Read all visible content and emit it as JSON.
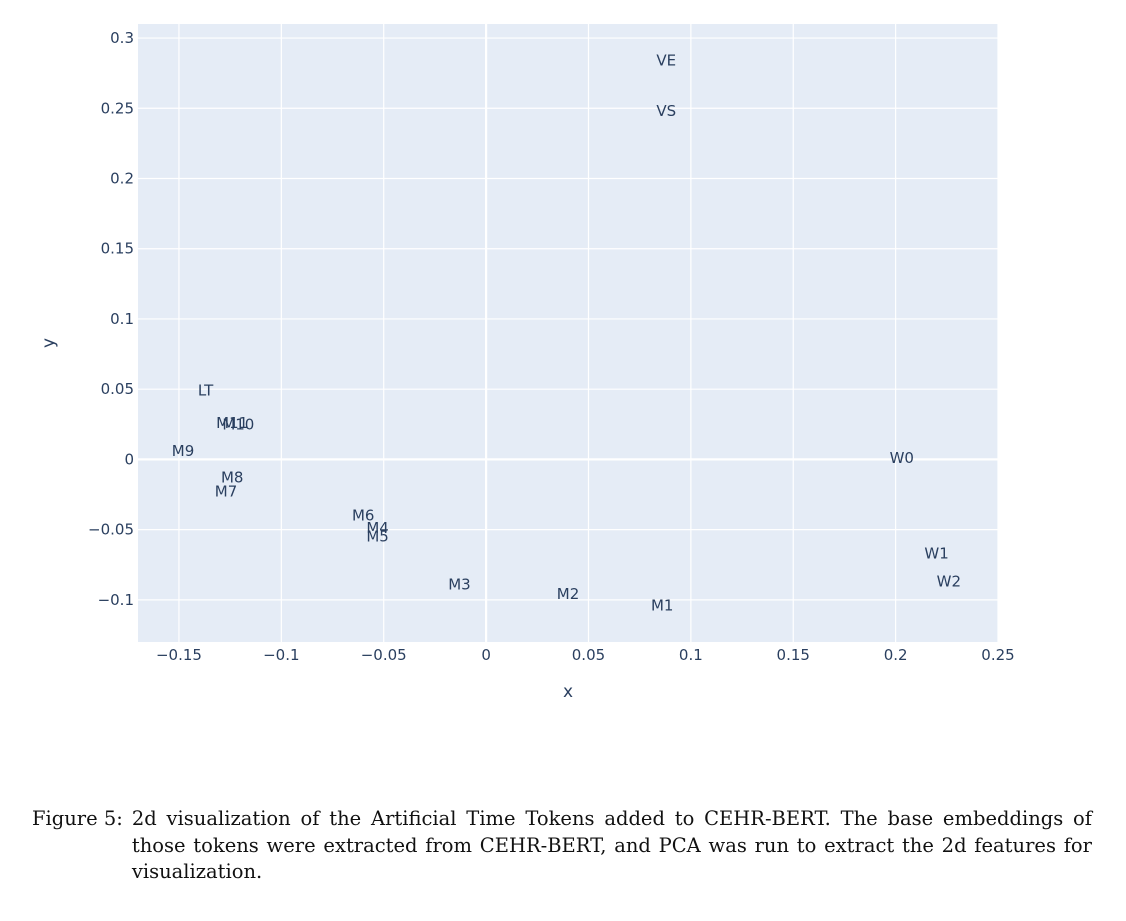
{
  "chart_data": {
    "type": "scatter",
    "mode": "text",
    "title": "",
    "xlabel": "x",
    "ylabel": "y",
    "xlim": [
      -0.17,
      0.25
    ],
    "ylim": [
      -0.13,
      0.31
    ],
    "xticks": [
      -0.15,
      -0.1,
      -0.05,
      0,
      0.05,
      0.1,
      0.15,
      0.2,
      0.25
    ],
    "xtick_labels": [
      "−0.15",
      "−0.1",
      "−0.05",
      "0",
      "0.05",
      "0.1",
      "0.15",
      "0.2",
      "0.25"
    ],
    "yticks": [
      -0.1,
      -0.05,
      0,
      0.05,
      0.1,
      0.15,
      0.2,
      0.25,
      0.3
    ],
    "ytick_labels": [
      "−0.1",
      "−0.05",
      "0",
      "0.05",
      "0.1",
      "0.15",
      "0.2",
      "0.25",
      "0.3"
    ],
    "grid": true,
    "legend": "none",
    "colors": {
      "plot_background": "#e5ecf6",
      "grid": "#ffffff",
      "text": "#2a3f5f"
    },
    "points": [
      {
        "label": "VE",
        "x": 0.088,
        "y": 0.284
      },
      {
        "label": "VS",
        "x": 0.088,
        "y": 0.248
      },
      {
        "label": "LT",
        "x": -0.137,
        "y": 0.049
      },
      {
        "label": "M11",
        "x": -0.124,
        "y": 0.026
      },
      {
        "label": "M10",
        "x": -0.121,
        "y": 0.025
      },
      {
        "label": "M9",
        "x": -0.148,
        "y": 0.006
      },
      {
        "label": "M8",
        "x": -0.124,
        "y": -0.013
      },
      {
        "label": "M7",
        "x": -0.127,
        "y": -0.023
      },
      {
        "label": "M6",
        "x": -0.06,
        "y": -0.04
      },
      {
        "label": "M4",
        "x": -0.053,
        "y": -0.049
      },
      {
        "label": "M5",
        "x": -0.053,
        "y": -0.055
      },
      {
        "label": "M3",
        "x": -0.013,
        "y": -0.089
      },
      {
        "label": "M2",
        "x": 0.04,
        "y": -0.096
      },
      {
        "label": "M1",
        "x": 0.086,
        "y": -0.104
      },
      {
        "label": "W0",
        "x": 0.203,
        "y": 0.001
      },
      {
        "label": "W1",
        "x": 0.22,
        "y": -0.067
      },
      {
        "label": "W2",
        "x": 0.226,
        "y": -0.087
      }
    ]
  },
  "caption": {
    "label": "Figure 5:",
    "text": "2d visualization of the Artificial Time Tokens added to CEHR-BERT. The base embeddings of those tokens were extracted from CEHR-BERT, and PCA was run to extract the 2d features for visualization."
  }
}
